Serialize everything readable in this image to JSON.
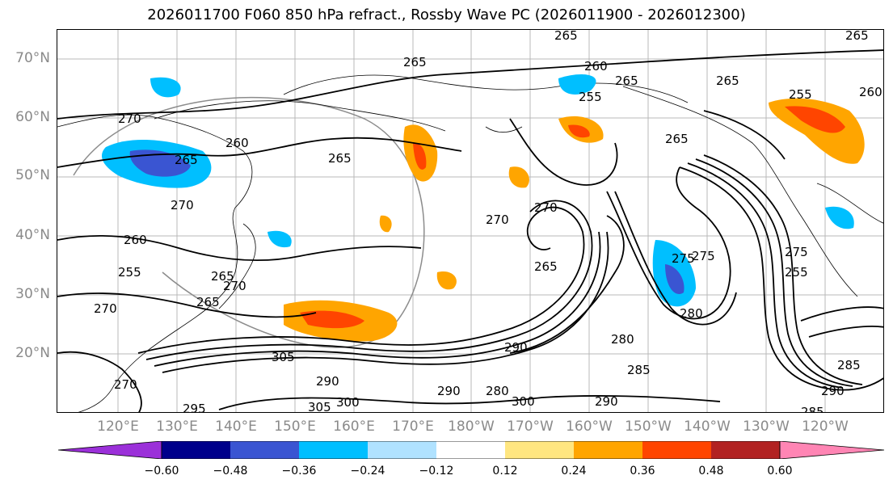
{
  "title": "2026011700 F060 850 hPa refract., Rossby Wave PC (2026011900 - 2026012300)",
  "latitude_labels": [
    "70°N",
    "60°N",
    "50°N",
    "40°N",
    "30°N",
    "20°N"
  ],
  "longitude_labels": [
    "120°E",
    "130°E",
    "140°E",
    "150°E",
    "160°E",
    "170°E",
    "180°W",
    "170°W",
    "160°W",
    "150°W",
    "140°W",
    "130°W",
    "120°W"
  ],
  "contour_labels": [
    "265",
    "265",
    "260",
    "265",
    "255",
    "265",
    "270",
    "260",
    "265",
    "265",
    "270",
    "270",
    "260",
    "255",
    "265",
    "270",
    "265",
    "270",
    "275",
    "285",
    "270",
    "265",
    "305",
    "295",
    "290",
    "300",
    "305",
    "280",
    "290",
    "290",
    "300",
    "290",
    "280",
    "285",
    "290",
    "285",
    "270",
    "275",
    "280",
    "275",
    "265",
    "255",
    "255",
    "265",
    "260"
  ],
  "colorbar": {
    "ticks": [
      "−0.60",
      "−0.48",
      "−0.36",
      "−0.24",
      "−0.12",
      "0.12",
      "0.24",
      "0.36",
      "0.48",
      "0.60"
    ],
    "colors": [
      "#9b30d9",
      "#00008b",
      "#3a55d2",
      "#00bfff",
      "#b0e2ff",
      "#ffffff",
      "#ffe680",
      "#ffa500",
      "#ff4500",
      "#b22222",
      "#ff85b4"
    ]
  }
}
